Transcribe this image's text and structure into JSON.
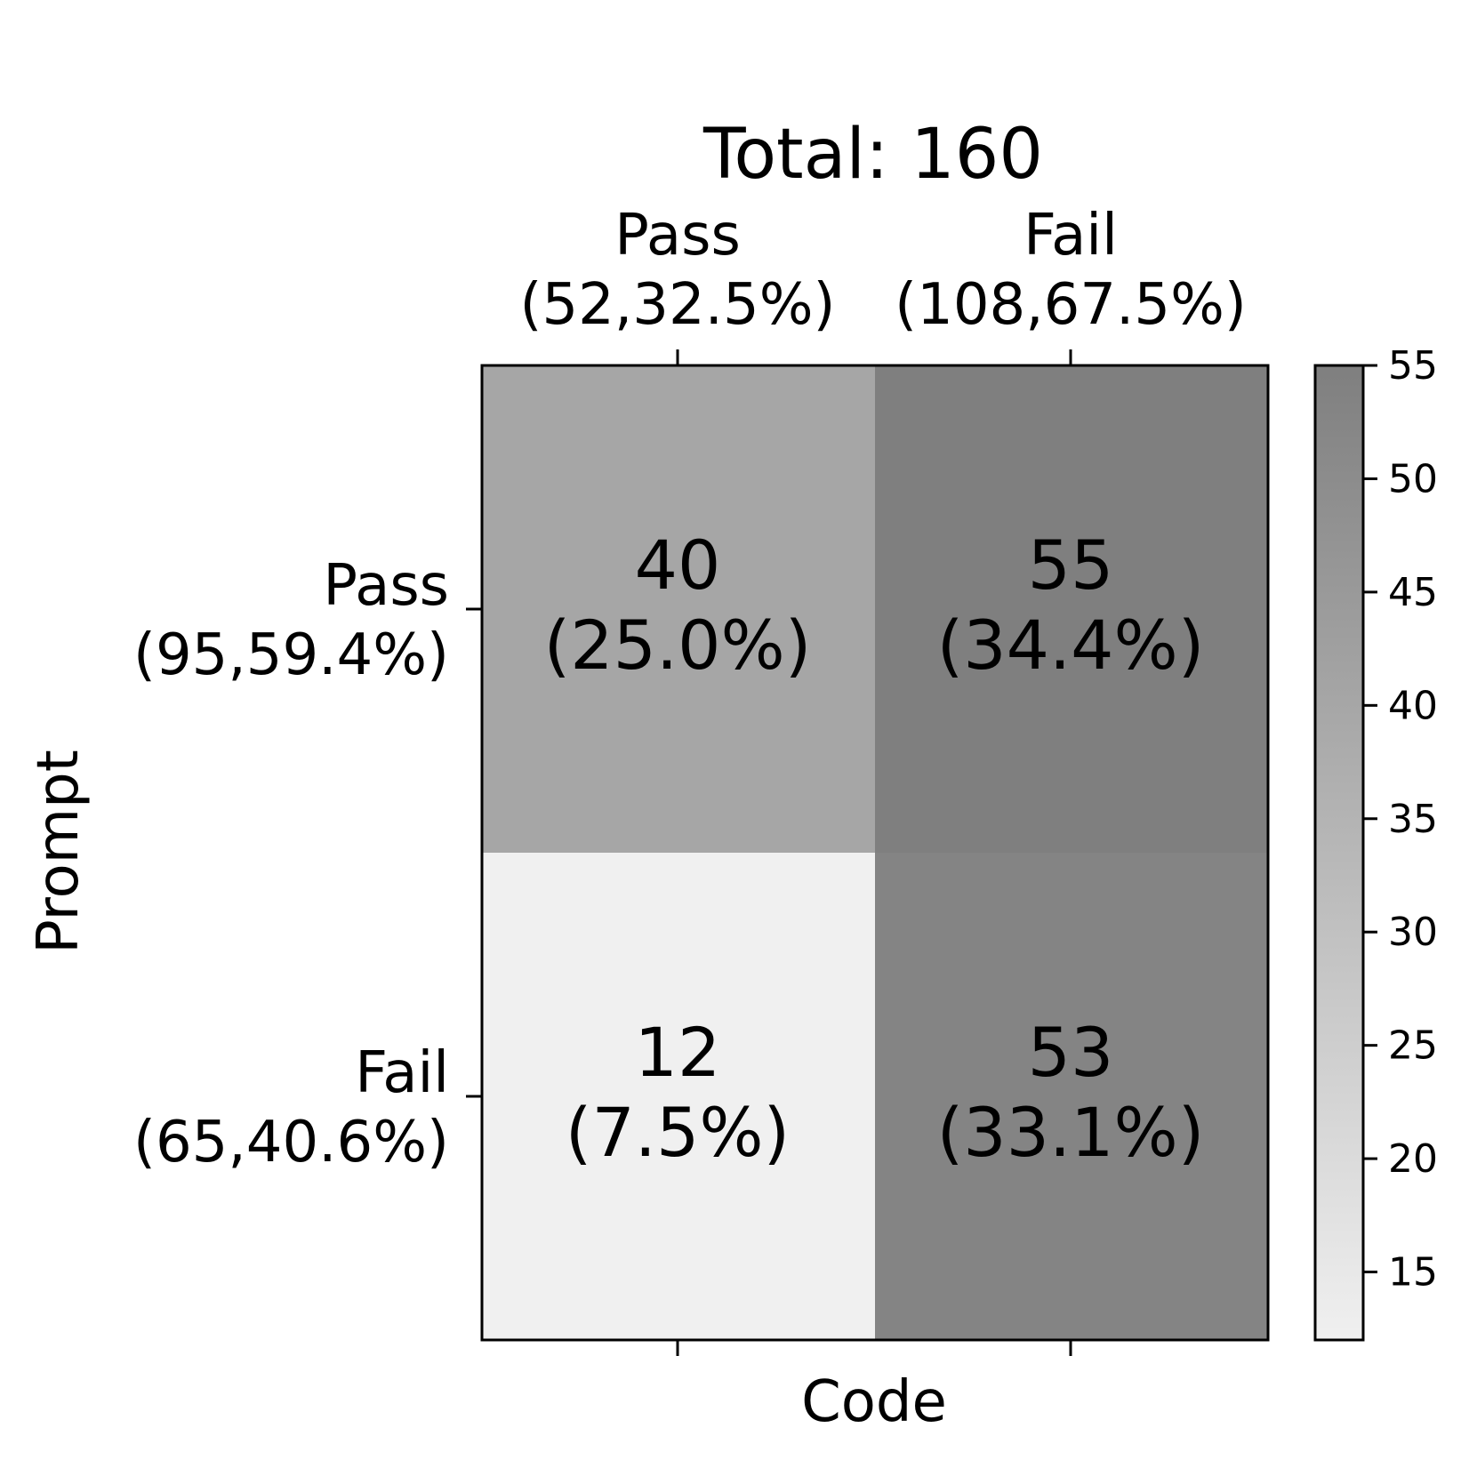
{
  "chart_data": {
    "type": "heatmap",
    "title": "Total: 160",
    "xlabel": "Code",
    "ylabel": "Prompt",
    "columns": [
      {
        "name": "Pass",
        "summary": "(52,32.5%)"
      },
      {
        "name": "Fail",
        "summary": "(108,67.5%)"
      }
    ],
    "rows": [
      {
        "name": "Pass",
        "summary": "(95,59.4%)"
      },
      {
        "name": "Fail",
        "summary": "(65,40.6%)"
      }
    ],
    "cells": [
      [
        {
          "value": 40,
          "value_label": "40",
          "percent_label": "(25.0%)"
        },
        {
          "value": 55,
          "value_label": "55",
          "percent_label": "(34.4%)"
        }
      ],
      [
        {
          "value": 12,
          "value_label": "12",
          "percent_label": "(7.5%)"
        },
        {
          "value": 53,
          "value_label": "53",
          "percent_label": "(33.1%)"
        }
      ]
    ],
    "colorbar": {
      "range": [
        12,
        55
      ],
      "ticks": [
        15,
        20,
        25,
        30,
        35,
        40,
        45,
        50,
        55
      ],
      "tick_labels": [
        "15",
        "20",
        "25",
        "30",
        "35",
        "40",
        "45",
        "50",
        "55"
      ],
      "color_low": "#f0f0f0",
      "color_high": "#7f7f7f"
    }
  }
}
